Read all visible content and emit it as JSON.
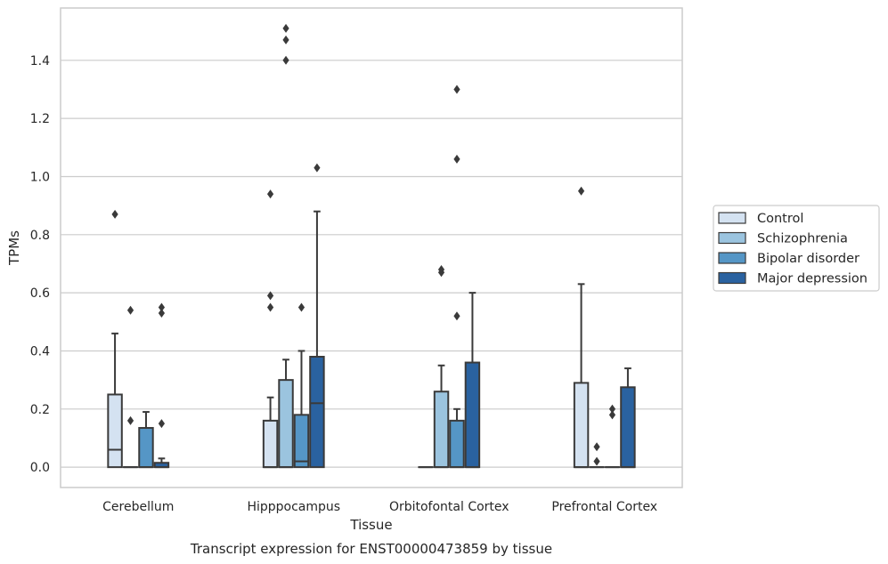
{
  "chart_data": {
    "type": "boxplot",
    "caption": "Transcript expression for ENST00000473859 by tissue",
    "xlabel": "Tissue",
    "ylabel": "TPMs",
    "ylim": [
      -0.07,
      1.58
    ],
    "yticks": [
      0.0,
      0.2,
      0.4,
      0.6,
      0.8,
      1.0,
      1.2,
      1.4
    ],
    "grid": true,
    "legend_position": "right",
    "categories": [
      "Cerebellum",
      "Hipppocampus",
      "Orbitofontal Cortex",
      "Prefrontal Cortex"
    ],
    "series": [
      {
        "name": "Control",
        "color": "#d4e2f1",
        "boxes": [
          {
            "q1": 0.0,
            "median": 0.06,
            "q3": 0.25,
            "whislo": 0.0,
            "whishi": 0.46,
            "fliers": [
              0.87
            ]
          },
          {
            "q1": 0.0,
            "median": 0.0,
            "q3": 0.16,
            "whislo": 0.0,
            "whishi": 0.24,
            "fliers": [
              0.55,
              0.59,
              0.94
            ]
          },
          {
            "q1": 0.0,
            "median": 0.0,
            "q3": 0.0,
            "whislo": 0.0,
            "whishi": 0.0,
            "fliers": []
          },
          {
            "q1": 0.0,
            "median": 0.0,
            "q3": 0.29,
            "whislo": 0.0,
            "whishi": 0.63,
            "fliers": [
              0.95
            ]
          }
        ]
      },
      {
        "name": "Schizophrenia",
        "color": "#9bc4df",
        "boxes": [
          {
            "q1": 0.0,
            "median": 0.0,
            "q3": 0.0,
            "whislo": 0.0,
            "whishi": 0.0,
            "fliers": [
              0.16,
              0.54
            ]
          },
          {
            "q1": 0.0,
            "median": 0.0,
            "q3": 0.3,
            "whislo": 0.0,
            "whishi": 0.37,
            "fliers": [
              1.4,
              1.47,
              1.51
            ]
          },
          {
            "q1": 0.0,
            "median": 0.0,
            "q3": 0.26,
            "whislo": 0.0,
            "whishi": 0.35,
            "fliers": [
              0.67,
              0.68
            ]
          },
          {
            "q1": 0.0,
            "median": 0.0,
            "q3": 0.0,
            "whislo": 0.0,
            "whishi": 0.0,
            "fliers": [
              0.02,
              0.07
            ]
          }
        ]
      },
      {
        "name": "Bipolar disorder",
        "color": "#5596c6",
        "boxes": [
          {
            "q1": 0.0,
            "median": 0.0,
            "q3": 0.135,
            "whislo": 0.0,
            "whishi": 0.19,
            "fliers": []
          },
          {
            "q1": 0.0,
            "median": 0.02,
            "q3": 0.18,
            "whislo": 0.0,
            "whishi": 0.4,
            "fliers": [
              0.55
            ]
          },
          {
            "q1": 0.0,
            "median": 0.0,
            "q3": 0.16,
            "whislo": 0.0,
            "whishi": 0.2,
            "fliers": [
              0.52,
              1.06,
              1.3
            ]
          },
          {
            "q1": 0.0,
            "median": 0.0,
            "q3": 0.0,
            "whislo": 0.0,
            "whishi": 0.0,
            "fliers": [
              0.18,
              0.2
            ]
          }
        ]
      },
      {
        "name": "Major depression",
        "color": "#2a62a0",
        "boxes": [
          {
            "q1": 0.0,
            "median": 0.0,
            "q3": 0.015,
            "whislo": 0.0,
            "whishi": 0.03,
            "fliers": [
              0.15,
              0.53,
              0.55
            ]
          },
          {
            "q1": 0.0,
            "median": 0.22,
            "q3": 0.38,
            "whislo": 0.0,
            "whishi": 0.88,
            "fliers": [
              1.03
            ]
          },
          {
            "q1": 0.0,
            "median": 0.0,
            "q3": 0.36,
            "whislo": 0.0,
            "whishi": 0.6,
            "fliers": []
          },
          {
            "q1": 0.0,
            "median": 0.0,
            "q3": 0.275,
            "whislo": 0.0,
            "whishi": 0.34,
            "fliers": []
          }
        ]
      }
    ]
  }
}
